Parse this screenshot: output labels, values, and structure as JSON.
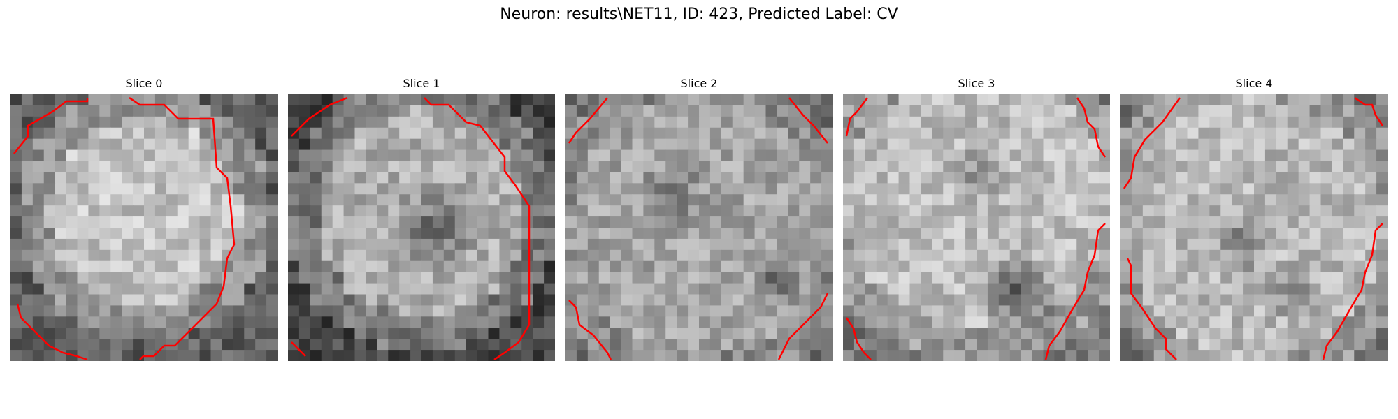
{
  "figure": {
    "title": "Neuron: results\\NET11, ID: 423, Predicted Label: CV"
  },
  "panels": [
    {
      "title": "Slice 0"
    },
    {
      "title": "Slice 1"
    },
    {
      "title": "Slice 2"
    },
    {
      "title": "Slice 3"
    },
    {
      "title": "Slice 4"
    }
  ],
  "colors": {
    "background": "#ffffff",
    "contour": "#ff0000",
    "colormap": "grayscale"
  }
}
